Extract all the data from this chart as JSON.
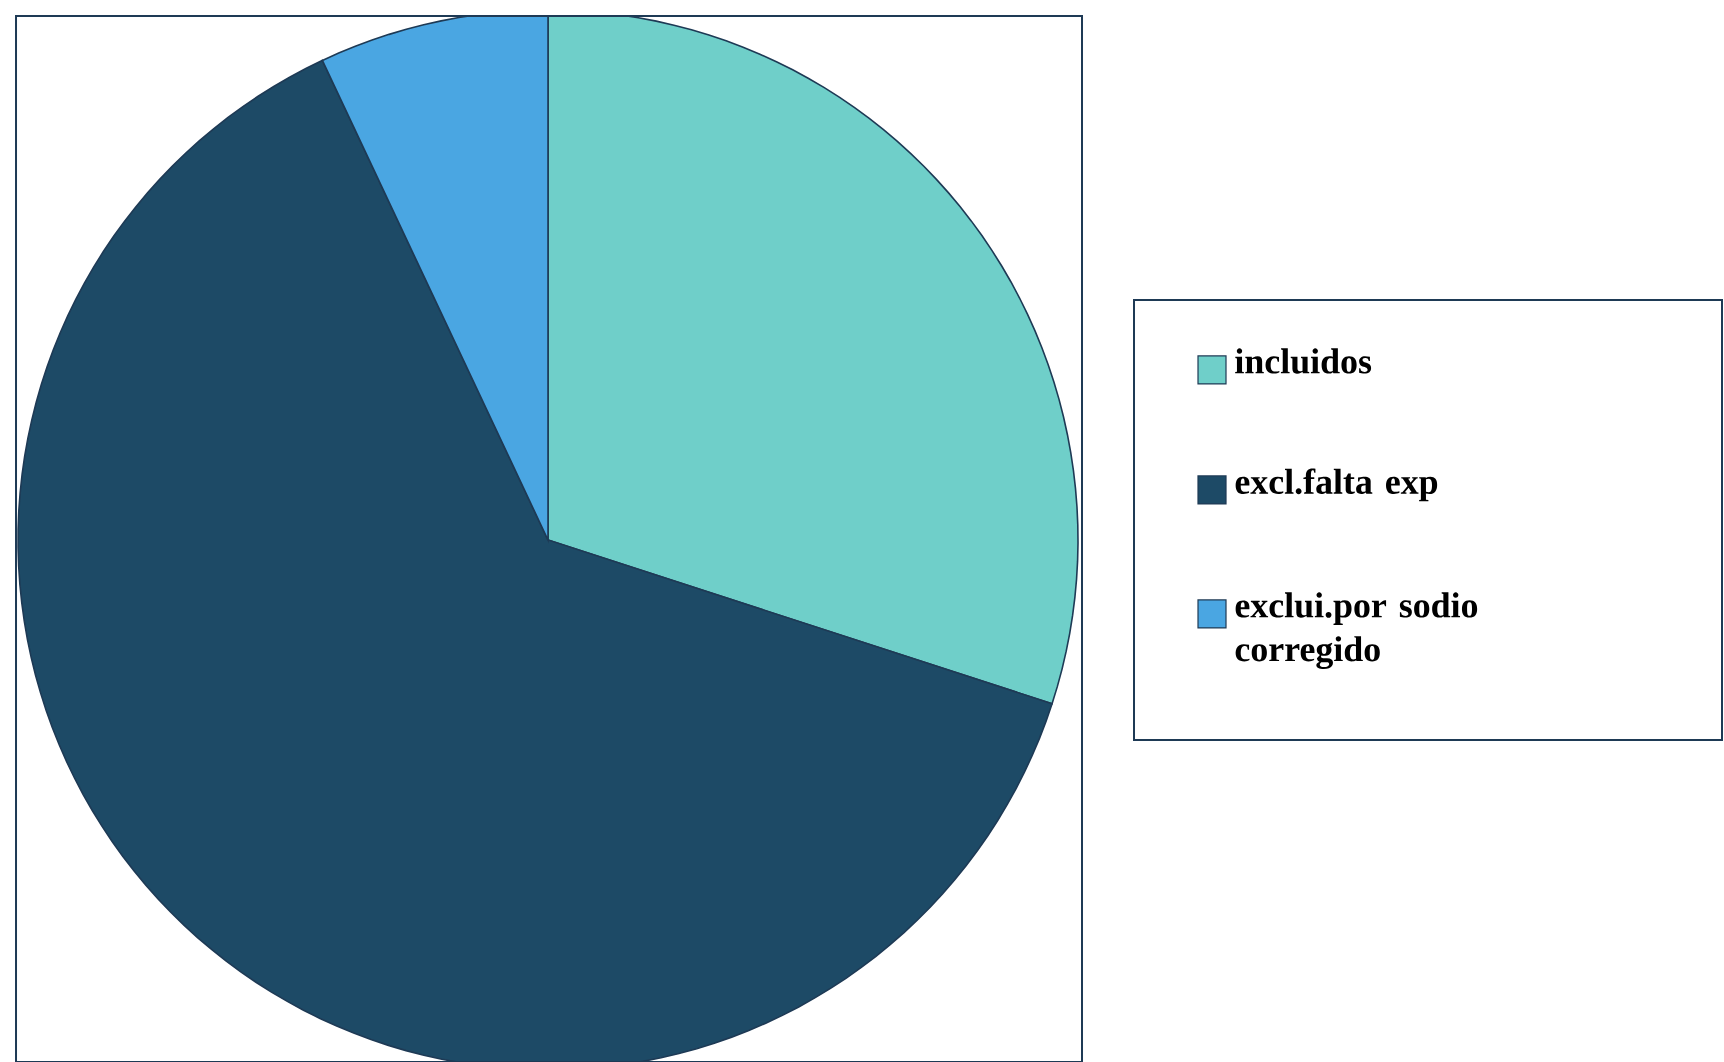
{
  "chart_data": {
    "type": "pie",
    "categories": [
      "incluidos",
      "excl.falta exp",
      "exclui.por sodio corregido"
    ],
    "values": [
      30,
      63,
      7
    ],
    "colors": [
      "#6fcfc9",
      "#1d4a66",
      "#4aa6e2"
    ],
    "legend": "right"
  }
}
